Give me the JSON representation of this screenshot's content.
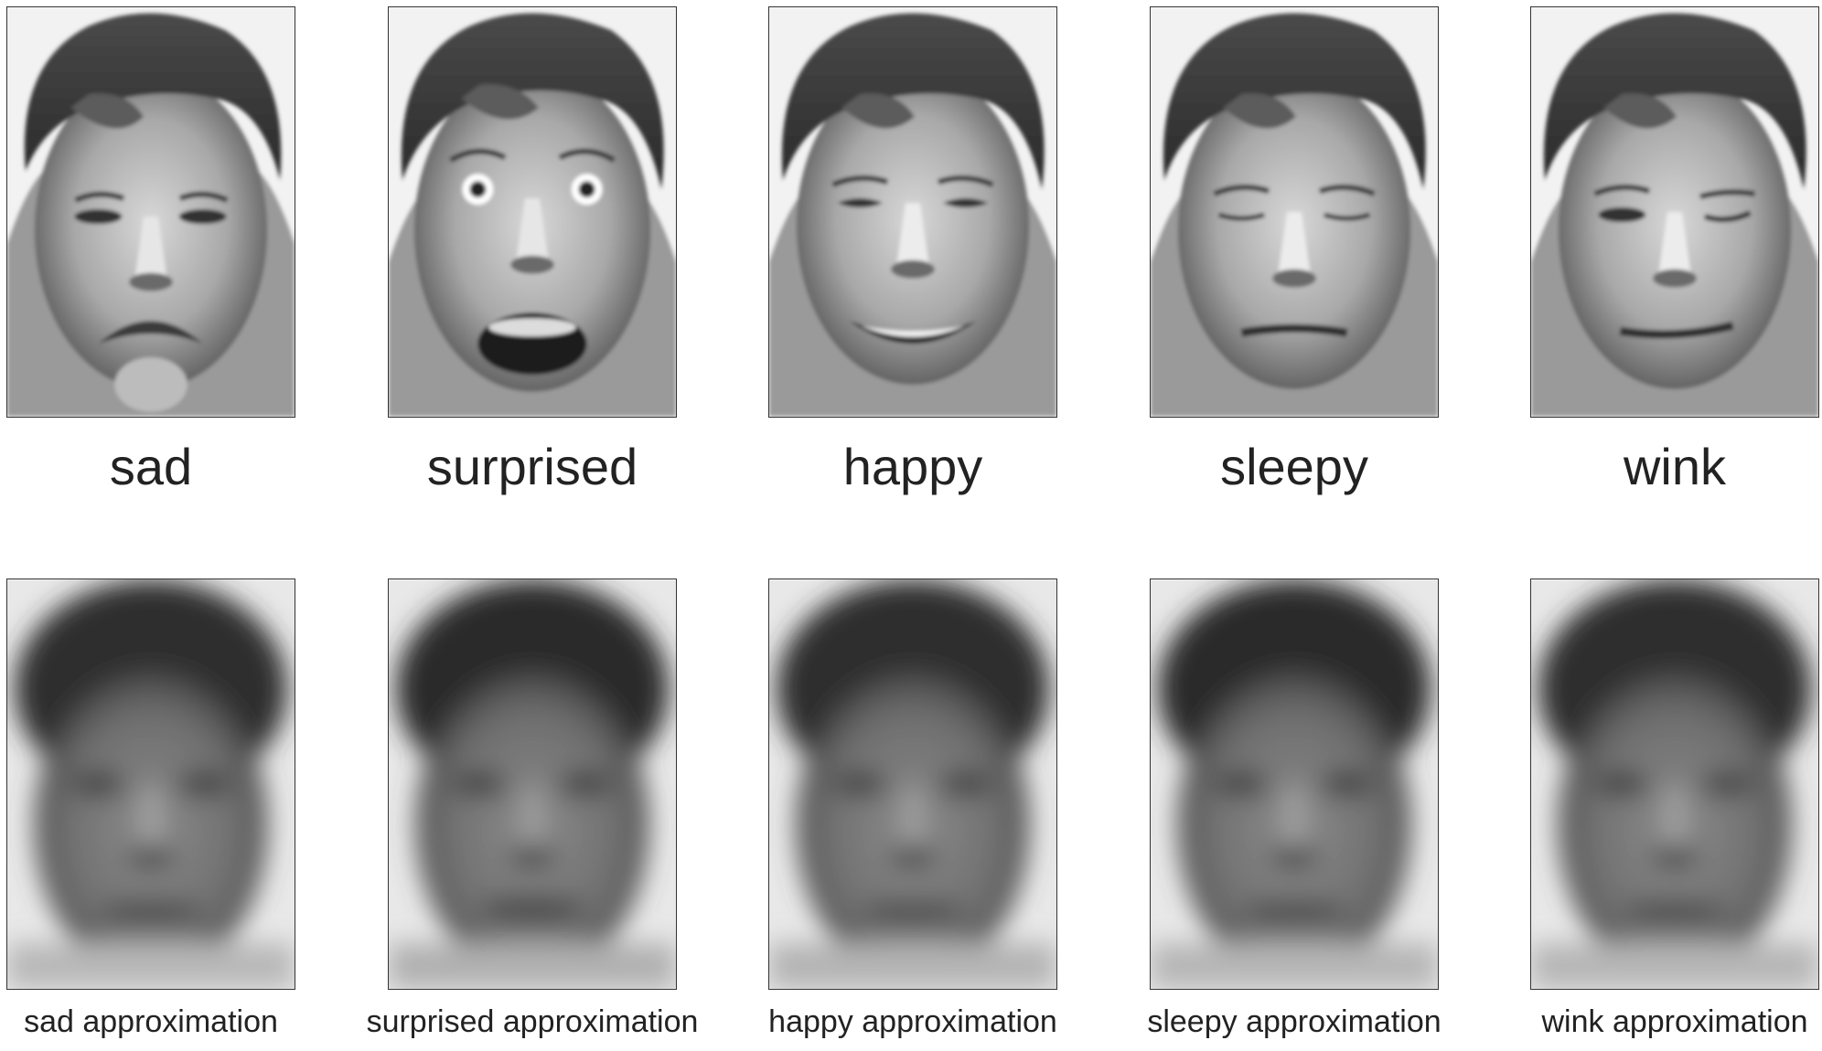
{
  "colors": {
    "background": "#ffffff",
    "frame": "#333333",
    "text": "#222222"
  },
  "columns": [
    {
      "key": "sad",
      "label": "sad",
      "approx_label": "sad approximation"
    },
    {
      "key": "surprised",
      "label": "surprised",
      "approx_label": "surprised approximation"
    },
    {
      "key": "happy",
      "label": "happy",
      "approx_label": "happy approximation"
    },
    {
      "key": "sleepy",
      "label": "sleepy",
      "approx_label": "sleepy approximation"
    },
    {
      "key": "wink",
      "label": "wink",
      "approx_label": "wink approximation"
    }
  ]
}
